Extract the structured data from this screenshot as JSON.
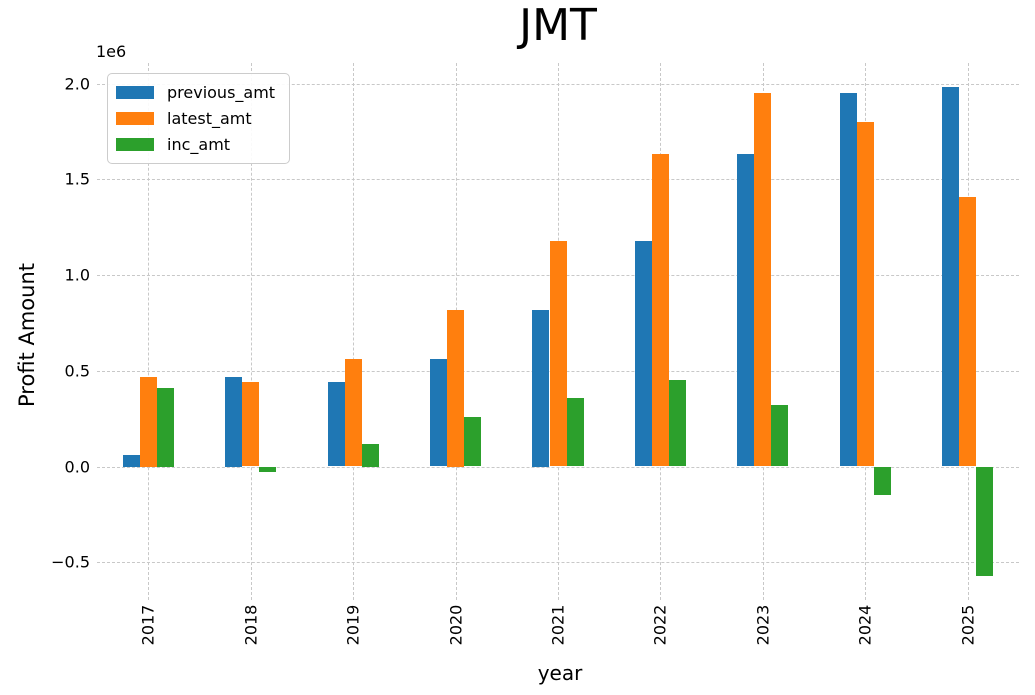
{
  "chart_data": {
    "type": "bar",
    "title": "JMT",
    "xlabel": "year",
    "ylabel": "Profit Amount",
    "y_axis_offset_text": "1e6",
    "categories": [
      "2017",
      "2018",
      "2019",
      "2020",
      "2021",
      "2022",
      "2023",
      "2024",
      "2025"
    ],
    "series": [
      {
        "name": "previous_amt",
        "color": "#1f77b4",
        "values": [
          60000,
          470000,
          440000,
          560000,
          820000,
          1180000,
          1630000,
          1950000,
          1980000
        ]
      },
      {
        "name": "latest_amt",
        "color": "#ff7f0e",
        "values": [
          470000,
          440000,
          560000,
          820000,
          1180000,
          1630000,
          1950000,
          1800000,
          1410000
        ]
      },
      {
        "name": "inc_amt",
        "color": "#2ca02c",
        "values": [
          410000,
          -30000,
          120000,
          260000,
          360000,
          450000,
          320000,
          -150000,
          -570000
        ]
      }
    ],
    "y_ticks": [
      {
        "value": -500000,
        "label": "−0.5"
      },
      {
        "value": 0,
        "label": "0.0"
      },
      {
        "value": 500000,
        "label": "0.5"
      },
      {
        "value": 1000000,
        "label": "1.0"
      },
      {
        "value": 1500000,
        "label": "1.5"
      },
      {
        "value": 2000000,
        "label": "2.0"
      }
    ],
    "ylim": [
      -697500,
      2107500
    ],
    "grid": true,
    "legend_position": "upper left",
    "gridline_color": "#c8c8c8"
  }
}
